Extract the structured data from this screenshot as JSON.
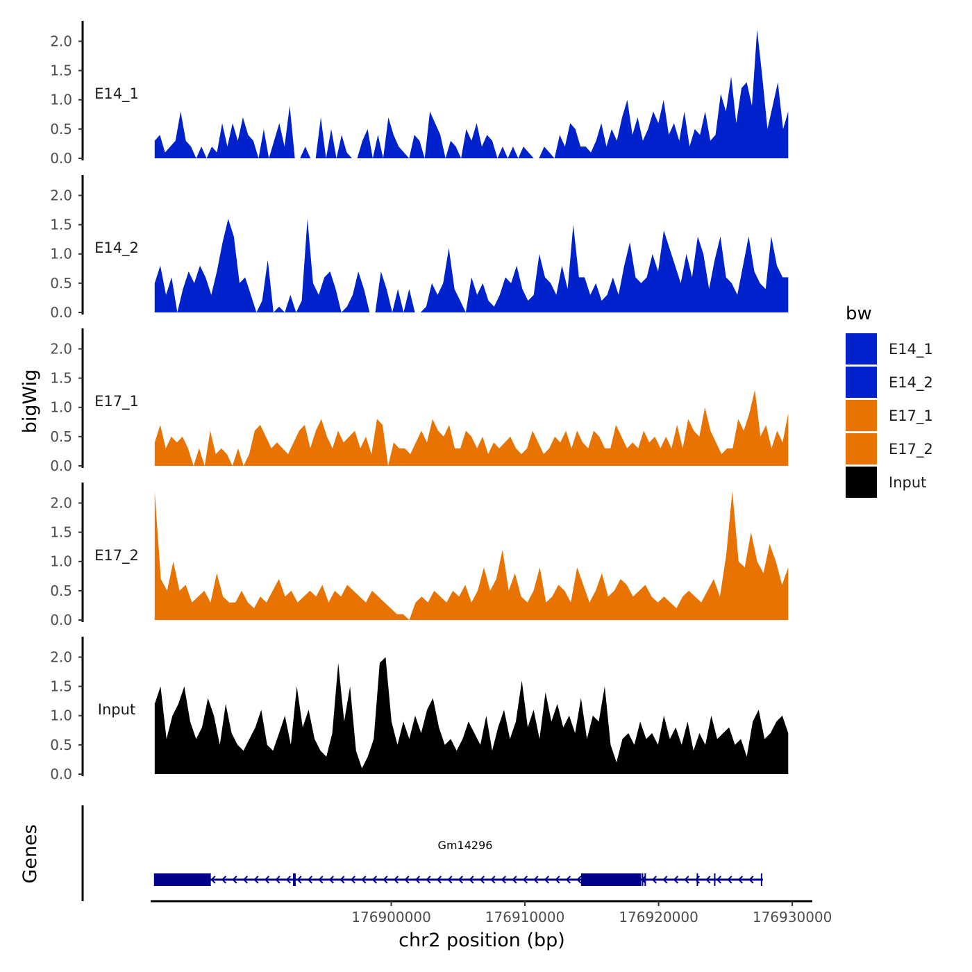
{
  "chart_data": {
    "type": "area",
    "ylabel": "bigWig",
    "xlabel": "chr2 position (bp)",
    "x_range": [
      176882000,
      176931500
    ],
    "ylim": [
      0,
      2.35
    ],
    "y_ticks": [
      "0.0",
      "0.5",
      "1.0",
      "1.5",
      "2.0"
    ],
    "x_ticks": [
      "176900000",
      "176910000",
      "176920000",
      "176930000"
    ],
    "legend": {
      "title": "bw",
      "placement": "right",
      "entries": [
        {
          "label": "E14_1",
          "color": "#0022cc"
        },
        {
          "label": "E14_2",
          "color": "#0022cc"
        },
        {
          "label": "E17_1",
          "color": "#e87300"
        },
        {
          "label": "E17_2",
          "color": "#e87300"
        },
        {
          "label": "Input",
          "color": "#000000"
        }
      ]
    },
    "series": [
      {
        "name": "E14_1",
        "color": "#0022cc",
        "values": [
          0.3,
          0.4,
          0.1,
          0.2,
          0.3,
          0.8,
          0.3,
          0.2,
          0,
          0.2,
          0,
          0.2,
          0.1,
          0.6,
          0.2,
          0.6,
          0.3,
          0.7,
          0.4,
          0.3,
          0,
          0.5,
          0,
          0.3,
          0.6,
          0.2,
          0.9,
          0,
          0,
          0.2,
          0,
          0,
          0.7,
          0,
          0.5,
          0,
          0.4,
          0.1,
          0,
          0,
          0.3,
          0.5,
          0,
          0.4,
          0,
          0.7,
          0.4,
          0.2,
          0.1,
          0,
          0.4,
          0.3,
          0,
          0.8,
          0.6,
          0.4,
          0,
          0.3,
          0.2,
          0,
          0.5,
          0.3,
          0.6,
          0.2,
          0.4,
          0.3,
          0,
          0.2,
          0,
          0.2,
          0,
          0.2,
          0.1,
          0,
          0,
          0.2,
          0.1,
          0,
          0.4,
          0.2,
          0.6,
          0.5,
          0.2,
          0.2,
          0.1,
          0.3,
          0.6,
          0.2,
          0.5,
          0.3,
          0.7,
          1.0,
          0.4,
          0.7,
          0.3,
          0.5,
          0.8,
          0.6,
          1.0,
          0.4,
          0.6,
          0.3,
          0.8,
          0.2,
          0.5,
          0.4,
          0.8,
          0.3,
          0.4,
          1.1,
          0.8,
          1.4,
          0.6,
          1.2,
          1.3,
          0.9,
          2.2,
          1.4,
          0.5,
          0.9,
          1.3,
          0.5,
          0.8
        ]
      },
      {
        "name": "E14_2",
        "color": "#0022cc",
        "values": [
          0.5,
          0.8,
          0.3,
          0.6,
          0,
          0.4,
          0.7,
          0.5,
          0.8,
          0.6,
          0.3,
          0.7,
          1.2,
          1.6,
          1.3,
          0.5,
          0.6,
          0.3,
          0,
          0.2,
          0.9,
          0,
          0.1,
          0,
          0.3,
          0,
          0.2,
          1.6,
          0.5,
          0.3,
          0.6,
          0.7,
          0.4,
          0,
          0.1,
          0.3,
          0.7,
          0.4,
          0,
          0,
          0.7,
          0.4,
          0,
          0.4,
          0,
          0.4,
          0,
          0,
          0.1,
          0.5,
          0.3,
          0.5,
          1.1,
          0.4,
          0.2,
          0,
          0.6,
          0.3,
          0.5,
          0.2,
          0.1,
          0.3,
          0.6,
          0.5,
          0.8,
          0.4,
          0.2,
          0.3,
          1.0,
          0.6,
          0.5,
          0.3,
          0.8,
          0.4,
          1.5,
          0.6,
          0.6,
          0.3,
          0.5,
          0.2,
          0.3,
          0.6,
          0.3,
          0.8,
          1.2,
          0.6,
          0.5,
          0.6,
          1.0,
          0.7,
          1.4,
          1.1,
          0.8,
          0.5,
          1.0,
          0.6,
          1.3,
          1.0,
          0.4,
          0.9,
          1.3,
          0.6,
          0.5,
          0.3,
          0.8,
          1.3,
          0.7,
          0.5,
          0.4,
          1.3,
          0.8,
          0.6,
          0.6
        ]
      },
      {
        "name": "E17_1",
        "color": "#e87300",
        "values": [
          0.4,
          0.7,
          0.3,
          0.5,
          0.4,
          0.5,
          0.3,
          0,
          0.3,
          0,
          0.6,
          0.2,
          0.3,
          0.2,
          0,
          0.3,
          0,
          0.2,
          0.6,
          0.7,
          0.5,
          0.3,
          0.4,
          0.3,
          0.2,
          0.4,
          0.6,
          0.7,
          0.3,
          0.6,
          0.8,
          0.5,
          0.3,
          0.6,
          0.4,
          0.5,
          0.6,
          0.3,
          0.5,
          0.2,
          0.8,
          0.7,
          0,
          0.4,
          0.3,
          0.3,
          0.2,
          0.4,
          0.6,
          0.4,
          0.8,
          0.6,
          0.5,
          0.7,
          0.3,
          0.3,
          0.6,
          0.5,
          0.3,
          0.5,
          0.2,
          0.4,
          0.3,
          0.4,
          0.5,
          0.3,
          0.2,
          0.3,
          0.6,
          0.4,
          0.2,
          0.3,
          0.5,
          0.4,
          0.6,
          0.3,
          0.6,
          0.4,
          0.3,
          0.6,
          0.5,
          0.3,
          0.3,
          0.7,
          0.5,
          0.3,
          0.4,
          0.3,
          0.6,
          0.4,
          0.5,
          0.3,
          0.5,
          0.3,
          0.7,
          0.3,
          0.8,
          0.6,
          0.5,
          1.0,
          0.6,
          0.4,
          0.2,
          0.3,
          0.3,
          0.8,
          0.6,
          0.9,
          1.3,
          0.5,
          0.7,
          0.3,
          0.6,
          0.4,
          0.9
        ]
      },
      {
        "name": "E17_2",
        "color": "#e87300",
        "values": [
          2.2,
          0.7,
          0.5,
          1.0,
          0.5,
          0.6,
          0.3,
          0.4,
          0.5,
          0.3,
          0.8,
          0.4,
          0.3,
          0.3,
          0.5,
          0.3,
          0.2,
          0.4,
          0.3,
          0.5,
          0.7,
          0.4,
          0.5,
          0.3,
          0.4,
          0.5,
          0.4,
          0.6,
          0.3,
          0.5,
          0.4,
          0.6,
          0.5,
          0.4,
          0.3,
          0.5,
          0.4,
          0.3,
          0.2,
          0.1,
          0.1,
          0,
          0.3,
          0.4,
          0.3,
          0.5,
          0.4,
          0.3,
          0.5,
          0.4,
          0.6,
          0.3,
          0.5,
          0.9,
          0.5,
          0.7,
          1.2,
          0.5,
          0.8,
          0.4,
          0.3,
          0.5,
          0.9,
          0.3,
          0.4,
          0.6,
          0.5,
          0.3,
          0.9,
          0.6,
          0.3,
          0.5,
          0.8,
          0.4,
          0.5,
          0.7,
          0.6,
          0.4,
          0.5,
          0.6,
          0.4,
          0.3,
          0.4,
          0.3,
          0.2,
          0.4,
          0.5,
          0.4,
          0.3,
          0.5,
          0.7,
          0.4,
          1.1,
          2.2,
          1.0,
          0.9,
          1.5,
          1.0,
          0.8,
          1.3,
          1.0,
          0.6,
          0.9
        ]
      },
      {
        "name": "Input",
        "color": "#000000",
        "values": [
          1.2,
          1.5,
          0.6,
          1.0,
          1.2,
          1.5,
          0.9,
          0.6,
          0.8,
          1.3,
          1.0,
          0.5,
          1.2,
          0.7,
          0.5,
          0.4,
          0.6,
          0.8,
          1.1,
          0.5,
          0.4,
          0.7,
          1.0,
          0.5,
          1.5,
          0.8,
          1.1,
          0.6,
          0.4,
          0.3,
          0.7,
          1.9,
          0.9,
          1.5,
          0.4,
          0.1,
          0.3,
          0.6,
          1.9,
          2.0,
          0.9,
          0.5,
          0.9,
          0.6,
          1.0,
          0.7,
          1.1,
          1.3,
          0.8,
          0.5,
          0.6,
          0.4,
          0.6,
          0.9,
          0.7,
          0.5,
          1.0,
          0.4,
          0.8,
          1.1,
          0.6,
          0.9,
          1.6,
          0.8,
          1.1,
          0.6,
          1.4,
          0.9,
          1.2,
          0.8,
          1.0,
          0.7,
          1.3,
          0.6,
          1.0,
          0.9,
          1.5,
          0.5,
          0.2,
          0.6,
          0.7,
          0.5,
          0.9,
          0.6,
          0.7,
          0.5,
          1.0,
          0.6,
          0.8,
          0.5,
          0.9,
          0.4,
          0.7,
          0.5,
          1.0,
          0.6,
          0.7,
          0.8,
          0.5,
          0.6,
          0.3,
          0.9,
          1.1,
          0.6,
          0.7,
          0.9,
          1.0,
          0.7
        ]
      }
    ],
    "genes": {
      "panel_label": "Genes",
      "name": "Gm14296",
      "color": "#00008b",
      "strand": "-",
      "start": 176882300,
      "end": 176927800,
      "exons": [
        {
          "start": 176882300,
          "end": 176886500
        },
        {
          "start": 176914200,
          "end": 176917500
        },
        {
          "start": 176917400,
          "end": 176918700
        }
      ],
      "marks": [
        176882300,
        176892700,
        176892800,
        176918800,
        176919000,
        176922900,
        176924200,
        176927700
      ]
    }
  }
}
